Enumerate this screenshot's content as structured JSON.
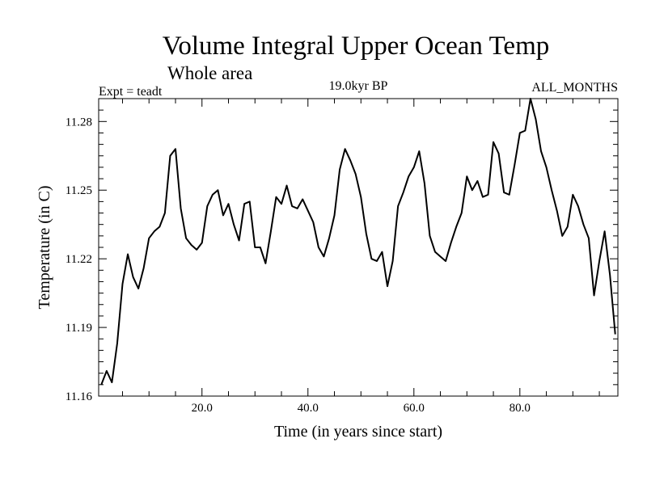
{
  "chart_data": {
    "type": "line",
    "title": "Volume Integral Upper Ocean Temp",
    "subtitle": "Whole area",
    "header_left": "Expt = teadt",
    "header_center": "19.0kyr BP",
    "header_right": "ALL_MONTHS",
    "xlabel": "Time (in years since start)",
    "ylabel": "Temperature (in C)",
    "xlim": [
      0.5,
      98.5
    ],
    "ylim": [
      11.16,
      11.29
    ],
    "xticks": [
      20,
      40,
      60,
      80
    ],
    "xtick_labels": [
      "20.0",
      "40.0",
      "60.0",
      "80.0"
    ],
    "yticks": [
      11.16,
      11.19,
      11.22,
      11.25,
      11.28
    ],
    "ytick_labels": [
      "11.16",
      "11.19",
      "11.22",
      "11.25",
      "11.28"
    ],
    "grid": false,
    "series": [
      {
        "name": "Volume Integral Upper Ocean Temp",
        "x": [
          1,
          2,
          3,
          4,
          5,
          6,
          7,
          8,
          9,
          10,
          11,
          12,
          13,
          14,
          15,
          16,
          17,
          18,
          19,
          20,
          21,
          22,
          23,
          24,
          25,
          26,
          27,
          28,
          29,
          30,
          31,
          32,
          33,
          34,
          35,
          36,
          37,
          38,
          39,
          40,
          41,
          42,
          43,
          44,
          45,
          46,
          47,
          48,
          49,
          50,
          51,
          52,
          53,
          54,
          55,
          56,
          57,
          58,
          59,
          60,
          61,
          62,
          63,
          64,
          65,
          66,
          67,
          68,
          69,
          70,
          71,
          72,
          73,
          74,
          75,
          76,
          77,
          78,
          79,
          80,
          81,
          82,
          83,
          84,
          85,
          86,
          87,
          88,
          89,
          90,
          91,
          92,
          93,
          94,
          95,
          96,
          97,
          98
        ],
        "values": [
          11.165,
          11.171,
          11.166,
          11.183,
          11.209,
          11.222,
          11.212,
          11.207,
          11.216,
          11.229,
          11.232,
          11.234,
          11.24,
          11.265,
          11.268,
          11.242,
          11.229,
          11.226,
          11.224,
          11.227,
          11.243,
          11.248,
          11.25,
          11.239,
          11.244,
          11.235,
          11.228,
          11.244,
          11.245,
          11.225,
          11.225,
          11.218,
          11.232,
          11.247,
          11.244,
          11.252,
          11.243,
          11.242,
          11.246,
          11.241,
          11.236,
          11.225,
          11.221,
          11.229,
          11.239,
          11.259,
          11.268,
          11.263,
          11.257,
          11.247,
          11.231,
          11.22,
          11.219,
          11.223,
          11.208,
          11.219,
          11.243,
          11.249,
          11.256,
          11.26,
          11.267,
          11.253,
          11.23,
          11.223,
          11.221,
          11.219,
          11.227,
          11.234,
          11.24,
          11.256,
          11.25,
          11.254,
          11.247,
          11.248,
          11.271,
          11.266,
          11.249,
          11.248,
          11.261,
          11.275,
          11.276,
          11.29,
          11.281,
          11.267,
          11.26,
          11.25,
          11.241,
          11.23,
          11.234,
          11.248,
          11.243,
          11.235,
          11.229,
          11.204,
          11.219,
          11.232,
          11.213,
          11.187
        ]
      }
    ]
  }
}
